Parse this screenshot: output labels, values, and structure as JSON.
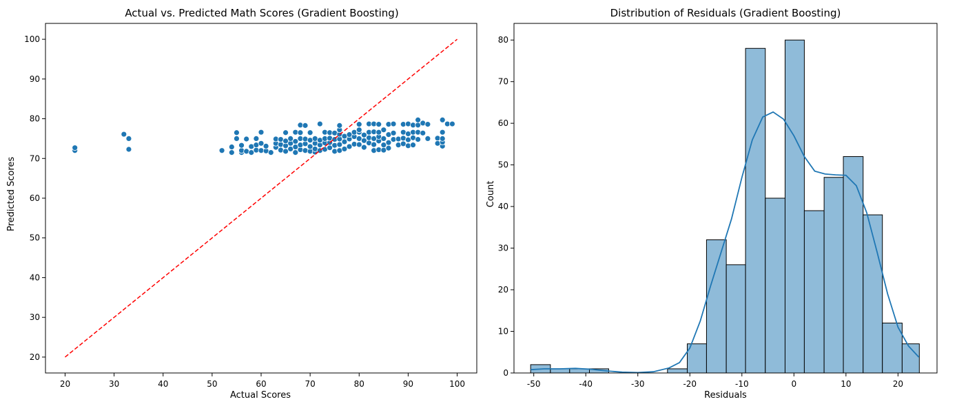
{
  "chart_data": [
    {
      "type": "scatter",
      "title": "Actual vs. Predicted Math Scores (Gradient Boosting)",
      "xlabel": "Actual Scores",
      "ylabel": "Predicted Scores",
      "xlim": [
        16,
        104
      ],
      "ylim": [
        16,
        104
      ],
      "xticks": [
        20,
        30,
        40,
        50,
        60,
        70,
        80,
        90,
        100
      ],
      "yticks": [
        20,
        30,
        40,
        50,
        60,
        70,
        80,
        90,
        100
      ],
      "grid": false,
      "point_color": "#1f77b4",
      "reference_line": {
        "x": [
          20,
          100
        ],
        "y": [
          20,
          100
        ],
        "color": "#ff0000",
        "style": "dashed"
      },
      "points": [
        [
          22,
          72.0
        ],
        [
          22,
          72.7
        ],
        [
          32,
          76.1
        ],
        [
          33,
          75.0
        ],
        [
          33,
          72.3
        ],
        [
          52,
          72.0
        ],
        [
          54,
          71.5
        ],
        [
          54,
          72.9
        ],
        [
          55,
          75.0
        ],
        [
          55,
          76.5
        ],
        [
          56,
          71.5
        ],
        [
          56,
          72.0
        ],
        [
          56,
          73.3
        ],
        [
          57,
          71.8
        ],
        [
          57,
          74.9
        ],
        [
          58,
          71.5
        ],
        [
          58,
          73.0
        ],
        [
          59,
          72.1
        ],
        [
          59,
          73.4
        ],
        [
          59,
          75.0
        ],
        [
          60,
          72.0
        ],
        [
          60,
          73.8
        ],
        [
          60,
          76.6
        ],
        [
          61,
          71.9
        ],
        [
          61,
          73.1
        ],
        [
          62,
          71.5
        ],
        [
          63,
          72.8
        ],
        [
          63,
          73.8
        ],
        [
          63,
          74.9
        ],
        [
          64,
          72.1
        ],
        [
          64,
          73.5
        ],
        [
          64,
          74.8
        ],
        [
          65,
          71.8
        ],
        [
          65,
          73.2
        ],
        [
          65,
          74.4
        ],
        [
          65,
          76.5
        ],
        [
          66,
          72.4
        ],
        [
          66,
          73.8
        ],
        [
          66,
          75.0
        ],
        [
          67,
          71.5
        ],
        [
          67,
          72.9
        ],
        [
          67,
          74.3
        ],
        [
          67,
          76.6
        ],
        [
          68,
          72.2
        ],
        [
          68,
          73.4
        ],
        [
          68,
          75.0
        ],
        [
          68,
          76.5
        ],
        [
          68,
          78.4
        ],
        [
          69,
          72.0
        ],
        [
          69,
          73.7
        ],
        [
          69,
          74.9
        ],
        [
          69,
          78.3
        ],
        [
          70,
          71.8
        ],
        [
          70,
          73.0
        ],
        [
          70,
          74.6
        ],
        [
          70,
          76.5
        ],
        [
          71,
          71.6
        ],
        [
          71,
          72.4
        ],
        [
          71,
          73.8
        ],
        [
          71,
          75.0
        ],
        [
          72,
          72.0
        ],
        [
          72,
          73.4
        ],
        [
          72,
          74.6
        ],
        [
          72,
          78.7
        ],
        [
          73,
          72.3
        ],
        [
          73,
          73.9
        ],
        [
          73,
          75.0
        ],
        [
          73,
          76.6
        ],
        [
          74,
          72.7
        ],
        [
          74,
          74.0
        ],
        [
          74,
          75.1
        ],
        [
          74,
          76.5
        ],
        [
          75,
          71.8
        ],
        [
          75,
          73.3
        ],
        [
          75,
          74.8
        ],
        [
          75,
          76.4
        ],
        [
          76,
          72.0
        ],
        [
          76,
          73.5
        ],
        [
          76,
          74.9
        ],
        [
          76,
          76.1
        ],
        [
          76,
          77.2
        ],
        [
          76,
          78.3
        ],
        [
          77,
          72.4
        ],
        [
          77,
          74.2
        ],
        [
          77,
          75.6
        ],
        [
          78,
          73.0
        ],
        [
          78,
          74.9
        ],
        [
          78,
          76.0
        ],
        [
          79,
          73.6
        ],
        [
          79,
          75.5
        ],
        [
          79,
          76.6
        ],
        [
          80,
          73.5
        ],
        [
          80,
          75.0
        ],
        [
          80,
          76.6
        ],
        [
          80,
          77.2
        ],
        [
          80,
          78.6
        ],
        [
          81,
          72.8
        ],
        [
          81,
          74.5
        ],
        [
          81,
          75.9
        ],
        [
          82,
          73.9
        ],
        [
          82,
          75.2
        ],
        [
          82,
          76.6
        ],
        [
          82,
          78.7
        ],
        [
          83,
          72.0
        ],
        [
          83,
          73.5
        ],
        [
          83,
          75.0
        ],
        [
          83,
          76.7
        ],
        [
          83,
          78.7
        ],
        [
          84,
          72.2
        ],
        [
          84,
          74.4
        ],
        [
          84,
          75.5
        ],
        [
          84,
          76.6
        ],
        [
          84,
          78.6
        ],
        [
          85,
          72.1
        ],
        [
          85,
          73.4
        ],
        [
          85,
          75.0
        ],
        [
          85,
          77.2
        ],
        [
          86,
          72.6
        ],
        [
          86,
          74.0
        ],
        [
          86,
          76.0
        ],
        [
          86,
          78.6
        ],
        [
          87,
          74.8
        ],
        [
          87,
          76.4
        ],
        [
          87,
          78.7
        ],
        [
          88,
          73.4
        ],
        [
          88,
          74.9
        ],
        [
          89,
          73.7
        ],
        [
          89,
          75.1
        ],
        [
          89,
          76.6
        ],
        [
          89,
          78.6
        ],
        [
          90,
          73.2
        ],
        [
          90,
          74.7
        ],
        [
          90,
          76.2
        ],
        [
          90,
          78.7
        ],
        [
          91,
          73.4
        ],
        [
          91,
          75.2
        ],
        [
          91,
          76.6
        ],
        [
          91,
          78.4
        ],
        [
          92,
          74.8
        ],
        [
          92,
          76.6
        ],
        [
          92,
          78.4
        ],
        [
          92,
          79.7
        ],
        [
          93,
          76.4
        ],
        [
          93,
          78.9
        ],
        [
          94,
          75.0
        ],
        [
          94,
          78.6
        ],
        [
          96,
          75.1
        ],
        [
          96,
          73.8
        ],
        [
          97,
          73.1
        ],
        [
          97,
          74.1
        ],
        [
          97,
          75.0
        ],
        [
          97,
          76.6
        ],
        [
          97,
          79.7
        ],
        [
          98,
          78.7
        ],
        [
          99,
          78.7
        ]
      ]
    },
    {
      "type": "histogram",
      "title": "Distribution of Residuals (Gradient Boosting)",
      "xlabel": "Residuals",
      "ylabel": "Count",
      "xlim": [
        -53.8,
        27.5
      ],
      "ylim": [
        0,
        84
      ],
      "xticks": [
        -50,
        -40,
        -30,
        -20,
        -10,
        0,
        10,
        20
      ],
      "yticks": [
        0,
        10,
        20,
        30,
        40,
        50,
        60,
        70,
        80
      ],
      "grid": false,
      "bar_color": "#8fbbd9",
      "edge_color": "#000000",
      "kde_color": "#1f77b4",
      "bin_edges": [
        -50.6,
        -46.8,
        -43.1,
        -39.3,
        -35.6,
        -31.8,
        -28.0,
        -24.3,
        -20.5,
        -16.8,
        -13.0,
        -9.3,
        -5.5,
        -1.7,
        2.0,
        5.8,
        9.5,
        13.3,
        17.0,
        20.8,
        24.1
      ],
      "counts": [
        2,
        1,
        1,
        1,
        0,
        0,
        0,
        1,
        7,
        32,
        26,
        78,
        42,
        80,
        39,
        47,
        52,
        38,
        12,
        7
      ],
      "kde": {
        "x": [
          -50.6,
          -48,
          -45,
          -42,
          -39,
          -36,
          -33,
          -30,
          -27,
          -24,
          -22,
          -20,
          -18,
          -16,
          -14,
          -12,
          -10,
          -8,
          -6,
          -4,
          -2,
          0,
          2,
          4,
          6,
          8,
          10,
          12,
          14,
          16,
          18,
          20,
          22,
          24
        ],
        "y": [
          0.8,
          1.0,
          1.0,
          1.1,
          0.9,
          0.5,
          0.2,
          0.1,
          0.3,
          1.2,
          2.5,
          6.0,
          12.5,
          21.0,
          29.0,
          37.0,
          47.0,
          56.0,
          61.5,
          62.7,
          61.0,
          57.0,
          52.0,
          48.5,
          47.8,
          47.6,
          47.5,
          45.0,
          38.5,
          29.0,
          19.0,
          11.0,
          6.5,
          3.8
        ]
      }
    }
  ]
}
